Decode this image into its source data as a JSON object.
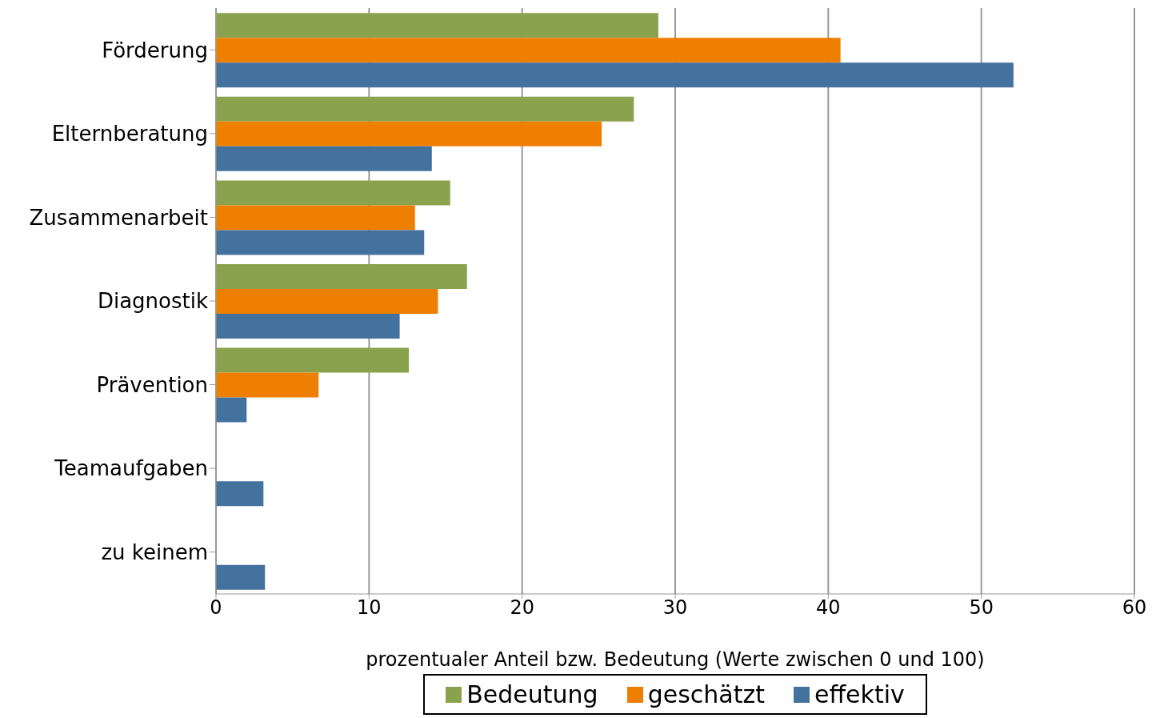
{
  "chart_data": {
    "type": "bar",
    "orientation": "horizontal",
    "categories": [
      "Förderung",
      "Elternberatung",
      "Zusammenarbeit",
      "Diagnostik",
      "Prävention",
      "Teamaufgaben",
      "zu keinem"
    ],
    "series": [
      {
        "name": "Bedeutung",
        "color": "#8aa24e",
        "values": [
          28.9,
          27.3,
          15.3,
          16.4,
          12.6,
          null,
          null
        ]
      },
      {
        "name": "geschätzt",
        "color": "#ee7f00",
        "values": [
          40.8,
          25.2,
          13.0,
          14.5,
          6.7,
          null,
          null
        ]
      },
      {
        "name": "effektiv",
        "color": "#44729f",
        "values": [
          52.1,
          14.1,
          13.6,
          12.0,
          2.0,
          3.1,
          3.2
        ]
      }
    ],
    "xlim": [
      0,
      60
    ],
    "xticks": [
      0,
      10,
      20,
      30,
      40,
      50,
      60
    ],
    "xlabel": "prozentualer Anteil bzw. Bedeutung (Werte zwischen 0 und 100)",
    "grid": "x",
    "legend": "bottom"
  }
}
